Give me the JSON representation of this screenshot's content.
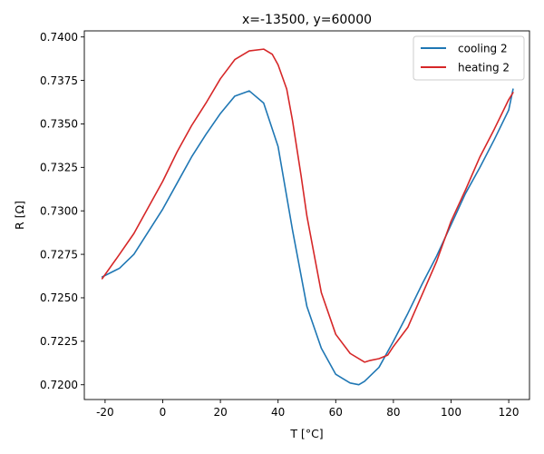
{
  "chart_data": {
    "type": "line",
    "title": "x=-13500, y=60000",
    "xlabel": "T [°C]",
    "ylabel": "R [Ω]",
    "xlim": [
      -27.2,
      127.2
    ],
    "ylim": [
      0.71915,
      0.74035
    ],
    "xticks": [
      -20,
      0,
      20,
      40,
      60,
      80,
      100,
      120
    ],
    "yticks": [
      0.72,
      0.7225,
      0.725,
      0.7275,
      0.73,
      0.7325,
      0.735,
      0.7375,
      0.74
    ],
    "grid": false,
    "legend_position": "top-right",
    "series": [
      {
        "name": "cooling 2",
        "color": "#1f77b4",
        "x": [
          -21,
          -15,
          -10,
          -5,
          0,
          5,
          10,
          15,
          20,
          25,
          30,
          35,
          40,
          45,
          50,
          55,
          60,
          65,
          68,
          70,
          75,
          80,
          85,
          90,
          95,
          100,
          105,
          110,
          115,
          120,
          121.5
        ],
        "y": [
          0.7262,
          0.7267,
          0.7275,
          0.7288,
          0.7301,
          0.7316,
          0.7331,
          0.7344,
          0.7356,
          0.7366,
          0.7369,
          0.7362,
          0.7337,
          0.7289,
          0.7245,
          0.7221,
          0.7206,
          0.7201,
          0.72,
          0.7202,
          0.721,
          0.7225,
          0.7241,
          0.7258,
          0.7274,
          0.7292,
          0.731,
          0.7325,
          0.7341,
          0.7358,
          0.737
        ]
      },
      {
        "name": "heating 2",
        "color": "#d62728",
        "x": [
          -21,
          -15,
          -10,
          -5,
          0,
          5,
          10,
          15,
          20,
          25,
          30,
          35,
          38,
          40,
          43,
          45,
          48,
          50,
          55,
          60,
          65,
          70,
          72,
          75,
          78,
          80,
          85,
          90,
          95,
          100,
          105,
          110,
          115,
          120,
          121.5
        ],
        "y": [
          0.7261,
          0.7275,
          0.7287,
          0.7302,
          0.7317,
          0.7334,
          0.7349,
          0.7362,
          0.7376,
          0.7387,
          0.7392,
          0.7393,
          0.739,
          0.7384,
          0.737,
          0.7352,
          0.732,
          0.7297,
          0.7253,
          0.7229,
          0.7218,
          0.7213,
          0.7214,
          0.7215,
          0.7217,
          0.7222,
          0.7233,
          0.7252,
          0.7271,
          0.7294,
          0.7312,
          0.7331,
          0.7347,
          0.7364,
          0.7368
        ]
      }
    ]
  }
}
